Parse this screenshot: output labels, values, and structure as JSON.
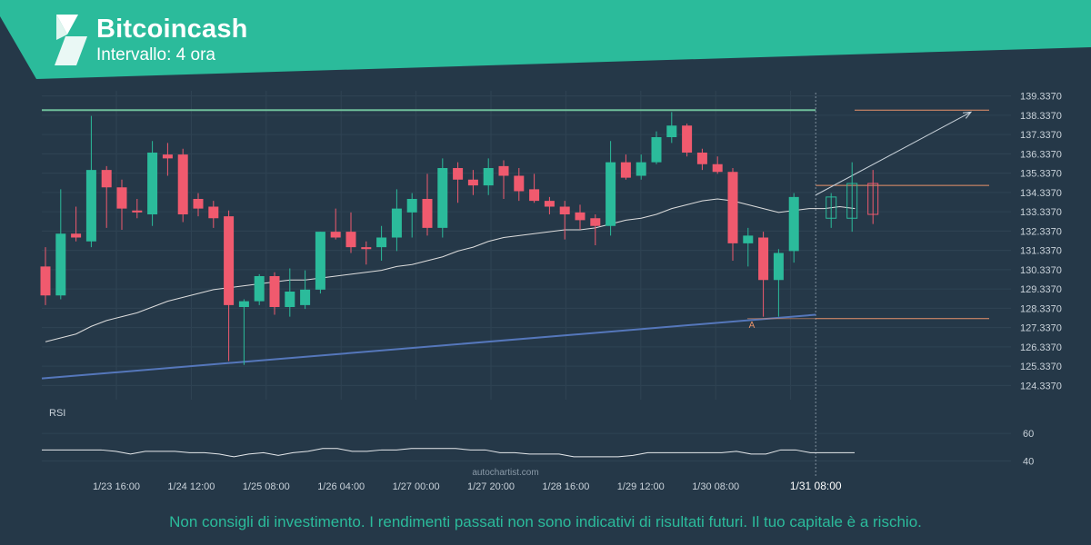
{
  "header": {
    "title": "Bitcoincash",
    "subtitle": "Intervallo: 4 ora",
    "logo_icon": "autochartist-logo-icon",
    "banner_color": "#2bbb9b"
  },
  "footer": {
    "disclaimer": "Non consigli di investimento. I rendimenti passati non sono indicativi di risultati futuri. Il tuo capitale è a rischio.",
    "watermark": "autochartist.com"
  },
  "chart_data": {
    "type": "candlestick",
    "price_ticks": [
      "139.3370",
      "138.3370",
      "137.3370",
      "136.3370",
      "135.3370",
      "134.3370",
      "133.3370",
      "132.3370",
      "131.3370",
      "130.3370",
      "129.3370",
      "128.3370",
      "127.3370",
      "126.3370",
      "125.3370",
      "124.3370"
    ],
    "x_ticks": [
      "1/23 16:00",
      "1/24 12:00",
      "1/25 08:00",
      "1/26 04:00",
      "1/27 00:00",
      "1/27 20:00",
      "1/28 16:00",
      "1/29 12:00",
      "1/30 08:00",
      "1/31 08:00"
    ],
    "current_time_label": "1/31 08:00",
    "ylim": [
      123.6,
      139.6
    ],
    "colors": {
      "up": "#2bbb9b",
      "down": "#f05a6e",
      "resistance": "#6fbf9a",
      "support": "#5577bb",
      "ma": "#dddddd",
      "levels": "#e8926a"
    },
    "candles": [
      {
        "o": 130.5,
        "h": 131.5,
        "l": 128.5,
        "c": 129.0
      },
      {
        "o": 129.0,
        "h": 134.5,
        "l": 128.8,
        "c": 132.2
      },
      {
        "o": 132.2,
        "h": 133.6,
        "l": 131.8,
        "c": 132.0
      },
      {
        "o": 131.8,
        "h": 138.3,
        "l": 131.5,
        "c": 135.5
      },
      {
        "o": 135.5,
        "h": 135.7,
        "l": 132.5,
        "c": 134.6
      },
      {
        "o": 134.6,
        "h": 135.0,
        "l": 132.4,
        "c": 133.5
      },
      {
        "o": 133.4,
        "h": 134.0,
        "l": 133.0,
        "c": 133.3
      },
      {
        "o": 133.2,
        "h": 137.0,
        "l": 132.6,
        "c": 136.4
      },
      {
        "o": 136.3,
        "h": 136.9,
        "l": 135.2,
        "c": 136.1
      },
      {
        "o": 136.3,
        "h": 136.6,
        "l": 132.8,
        "c": 133.2
      },
      {
        "o": 134.0,
        "h": 134.3,
        "l": 133.1,
        "c": 133.5
      },
      {
        "o": 133.6,
        "h": 133.9,
        "l": 132.5,
        "c": 133.0
      },
      {
        "o": 133.1,
        "h": 133.4,
        "l": 125.6,
        "c": 128.5
      },
      {
        "o": 128.4,
        "h": 128.8,
        "l": 125.4,
        "c": 128.7
      },
      {
        "o": 128.7,
        "h": 130.1,
        "l": 128.5,
        "c": 130.0
      },
      {
        "o": 130.0,
        "h": 130.2,
        "l": 128.0,
        "c": 128.4
      },
      {
        "o": 128.4,
        "h": 130.4,
        "l": 127.9,
        "c": 129.2
      },
      {
        "o": 128.5,
        "h": 130.3,
        "l": 128.3,
        "c": 129.3
      },
      {
        "o": 129.3,
        "h": 132.3,
        "l": 129.1,
        "c": 132.3
      },
      {
        "o": 132.3,
        "h": 133.5,
        "l": 131.9,
        "c": 132.0
      },
      {
        "o": 132.3,
        "h": 133.3,
        "l": 131.2,
        "c": 131.5
      },
      {
        "o": 131.5,
        "h": 131.8,
        "l": 130.6,
        "c": 131.4
      },
      {
        "o": 131.5,
        "h": 132.6,
        "l": 130.8,
        "c": 132.0
      },
      {
        "o": 132.0,
        "h": 134.5,
        "l": 131.3,
        "c": 133.5
      },
      {
        "o": 133.3,
        "h": 134.3,
        "l": 132.0,
        "c": 134.0
      },
      {
        "o": 134.0,
        "h": 135.3,
        "l": 132.1,
        "c": 132.5
      },
      {
        "o": 132.5,
        "h": 136.1,
        "l": 132.0,
        "c": 135.6
      },
      {
        "o": 135.6,
        "h": 135.9,
        "l": 133.8,
        "c": 135.0
      },
      {
        "o": 135.0,
        "h": 135.5,
        "l": 134.2,
        "c": 134.7
      },
      {
        "o": 134.7,
        "h": 136.1,
        "l": 134.2,
        "c": 135.6
      },
      {
        "o": 135.7,
        "h": 136.0,
        "l": 134.0,
        "c": 135.2
      },
      {
        "o": 135.2,
        "h": 135.6,
        "l": 133.9,
        "c": 134.4
      },
      {
        "o": 134.5,
        "h": 135.3,
        "l": 133.8,
        "c": 133.9
      },
      {
        "o": 133.9,
        "h": 134.1,
        "l": 133.2,
        "c": 133.6
      },
      {
        "o": 133.6,
        "h": 133.9,
        "l": 131.9,
        "c": 133.2
      },
      {
        "o": 133.3,
        "h": 133.7,
        "l": 132.4,
        "c": 132.9
      },
      {
        "o": 133.0,
        "h": 133.2,
        "l": 131.6,
        "c": 132.6
      },
      {
        "o": 132.6,
        "h": 137.0,
        "l": 132.1,
        "c": 135.9
      },
      {
        "o": 135.9,
        "h": 136.3,
        "l": 135.0,
        "c": 135.1
      },
      {
        "o": 135.2,
        "h": 136.3,
        "l": 135.0,
        "c": 135.9
      },
      {
        "o": 135.9,
        "h": 137.5,
        "l": 135.8,
        "c": 137.2
      },
      {
        "o": 137.2,
        "h": 138.5,
        "l": 136.9,
        "c": 137.8
      },
      {
        "o": 137.8,
        "h": 137.9,
        "l": 136.2,
        "c": 136.4
      },
      {
        "o": 136.4,
        "h": 136.6,
        "l": 135.5,
        "c": 135.8
      },
      {
        "o": 135.8,
        "h": 136.2,
        "l": 135.3,
        "c": 135.4
      },
      {
        "o": 135.4,
        "h": 135.6,
        "l": 130.8,
        "c": 131.7
      },
      {
        "o": 131.7,
        "h": 132.5,
        "l": 130.5,
        "c": 132.1
      },
      {
        "o": 132.0,
        "h": 132.3,
        "l": 127.9,
        "c": 129.8
      },
      {
        "o": 129.8,
        "h": 131.4,
        "l": 127.9,
        "c": 131.2
      },
      {
        "o": 131.3,
        "h": 134.3,
        "l": 130.7,
        "c": 134.1
      }
    ],
    "pattern_candles": [
      {
        "o": 133.0,
        "h": 134.3,
        "l": 132.5,
        "c": 134.1
      },
      {
        "o": 133.0,
        "h": 135.9,
        "l": 132.3,
        "c": 134.8
      },
      {
        "o": 134.8,
        "h": 135.5,
        "l": 132.7,
        "c": 133.2
      }
    ],
    "moving_average": [
      126.6,
      126.8,
      127.0,
      127.4,
      127.7,
      127.9,
      128.1,
      128.4,
      128.7,
      128.9,
      129.1,
      129.3,
      129.4,
      129.5,
      129.6,
      129.7,
      129.8,
      129.8,
      129.9,
      130.0,
      130.1,
      130.2,
      130.3,
      130.5,
      130.6,
      130.8,
      131.0,
      131.3,
      131.5,
      131.8,
      132.0,
      132.1,
      132.2,
      132.3,
      132.4,
      132.4,
      132.5,
      132.7,
      132.9,
      133.0,
      133.2,
      133.5,
      133.7,
      133.9,
      134.0,
      133.9,
      133.7,
      133.5,
      133.3,
      133.4
    ],
    "moving_average_projection": [
      133.5,
      133.5,
      133.6,
      133.5
    ],
    "resistance_line": {
      "from": 138.6,
      "to": 138.6
    },
    "support_line": {
      "from": 124.7,
      "to": 128.0
    },
    "levels": {
      "upper": 138.6,
      "middle": 134.7,
      "lower": 127.8
    },
    "forecast_arrow": {
      "from": 134.2,
      "to": 138.5
    },
    "annotation": "A",
    "rsi": {
      "label": "RSI",
      "ticks": [
        "60",
        "40"
      ],
      "ylim": [
        35,
        70
      ],
      "values": [
        48,
        48,
        48,
        48,
        48,
        47,
        45,
        47,
        47,
        47,
        46,
        46,
        45,
        43,
        45,
        46,
        44,
        46,
        47,
        49,
        49,
        47,
        47,
        48,
        48,
        49,
        49,
        49,
        49,
        48,
        48,
        46,
        46,
        45,
        45,
        45,
        43,
        43,
        43,
        43,
        44,
        46,
        46,
        46,
        46,
        46,
        46,
        47,
        45,
        45,
        48,
        48,
        46,
        46,
        46,
        46
      ]
    }
  }
}
